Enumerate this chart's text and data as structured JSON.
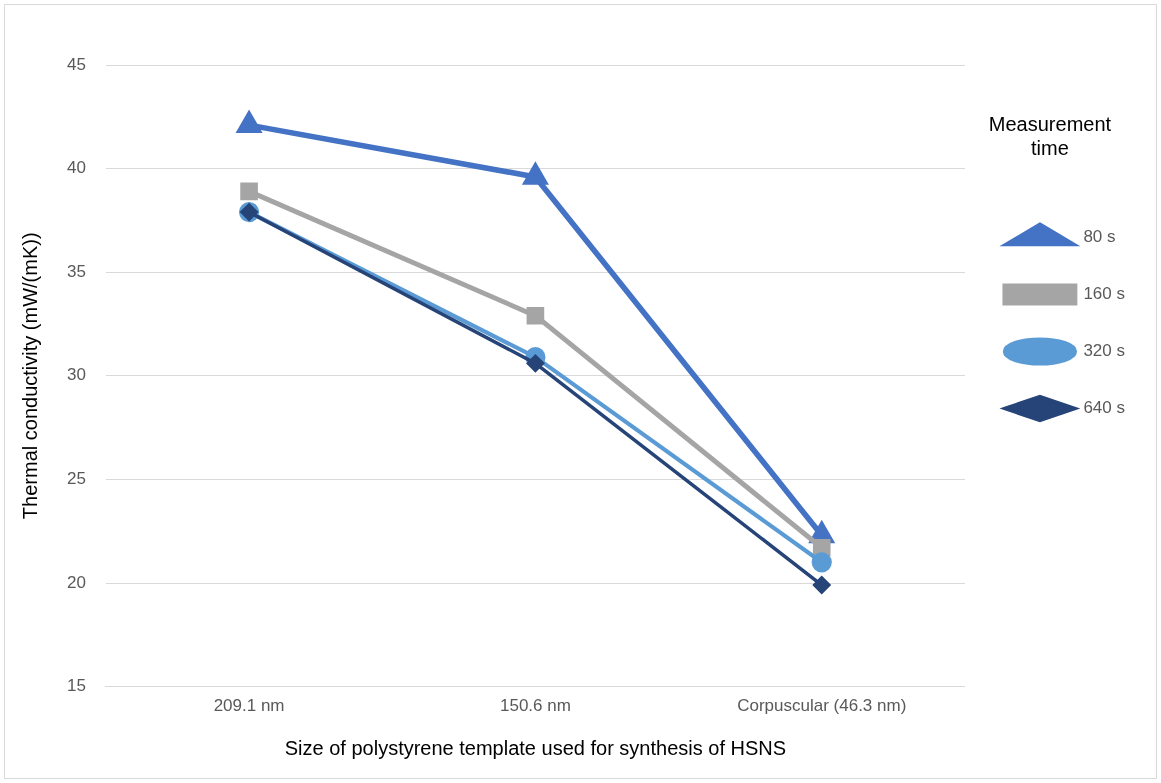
{
  "chart_data": {
    "type": "line",
    "xlabel": "Size of polystyrene template used for synthesis of HSNS",
    "ylabel": "Thermal conductivity (mW/(mK))",
    "legend_title": "Measurement time",
    "categories": [
      "209.1 nm",
      "150.6 nm",
      "Corpuscular (46.3 nm)"
    ],
    "series": [
      {
        "name": "80 s",
        "color": "#4472c4",
        "marker": "triangle",
        "values": [
          42.1,
          39.6,
          22.3
        ]
      },
      {
        "name": "160 s",
        "color": "#a5a5a5",
        "marker": "square",
        "values": [
          38.9,
          32.9,
          21.7
        ]
      },
      {
        "name": "320 s",
        "color": "#5b9bd5",
        "marker": "circle",
        "values": [
          37.9,
          30.9,
          21.0
        ]
      },
      {
        "name": "640 s",
        "color": "#264478",
        "marker": "diamond",
        "values": [
          37.9,
          30.6,
          19.9
        ]
      }
    ],
    "ylim": [
      15,
      45
    ],
    "yticks": [
      15,
      20,
      25,
      30,
      35,
      40,
      45
    ],
    "grid": "y",
    "legend": "right",
    "line_style": "solid"
  }
}
